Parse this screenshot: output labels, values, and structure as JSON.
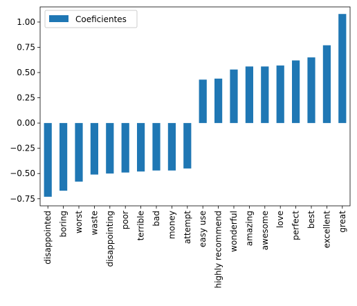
{
  "chart_data": {
    "type": "bar",
    "categories": [
      "disappointed",
      "boring",
      "worst",
      "waste",
      "disappointing",
      "poor",
      "terrible",
      "bad",
      "money",
      "attempt",
      "easy use",
      "highly recommend",
      "wonderful",
      "amazing",
      "awesome",
      "love",
      "perfect",
      "best",
      "excellent",
      "great"
    ],
    "series": [
      {
        "name": "Coeficientes",
        "values": [
          -0.73,
          -0.67,
          -0.58,
          -0.51,
          -0.5,
          -0.49,
          -0.48,
          -0.47,
          -0.47,
          -0.45,
          0.43,
          0.44,
          0.53,
          0.56,
          0.56,
          0.57,
          0.62,
          0.65,
          0.77,
          1.08
        ],
        "color": "#1f77b4"
      }
    ],
    "yticks": [
      "−0.75",
      "−0.50",
      "−0.25",
      "0.00",
      "0.25",
      "0.50",
      "0.75",
      "1.00"
    ],
    "ylim": [
      -0.82,
      1.15
    ],
    "grid": false,
    "legend_position": "top-left"
  }
}
